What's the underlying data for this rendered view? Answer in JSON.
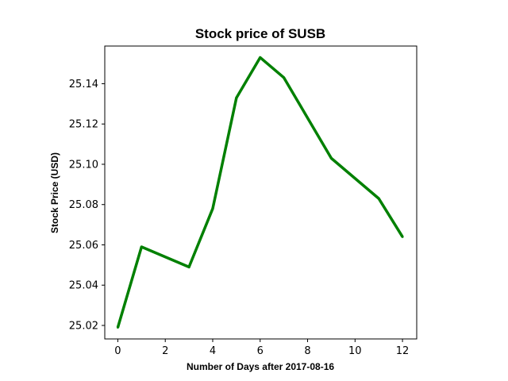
{
  "chart_data": {
    "type": "line",
    "title": "Stock price of SUSB",
    "xlabel": "Number of Days after 2017-08-16",
    "ylabel": "Stock Price (USD)",
    "x": [
      0,
      1,
      3,
      4,
      5,
      6,
      7,
      9,
      11,
      12
    ],
    "series": [
      {
        "values": [
          25.019,
          25.059,
          25.049,
          25.078,
          25.133,
          25.153,
          25.143,
          25.103,
          25.083,
          25.064
        ]
      }
    ],
    "xlim": [
      -0.55,
      12.6
    ],
    "ylim": [
      25.0133,
      25.1587
    ],
    "xticks": [
      0,
      2,
      4,
      6,
      8,
      10,
      12
    ],
    "xtick_labels": [
      "0",
      "2",
      "4",
      "6",
      "8",
      "10",
      "12"
    ],
    "yticks": [
      25.02,
      25.04,
      25.06,
      25.08,
      25.1,
      25.12,
      25.14
    ],
    "ytick_labels": [
      "25.02",
      "25.04",
      "25.06",
      "25.08",
      "25.10",
      "25.12",
      "25.14"
    ],
    "line_color": "#008000",
    "grid": false,
    "legend": "none"
  }
}
